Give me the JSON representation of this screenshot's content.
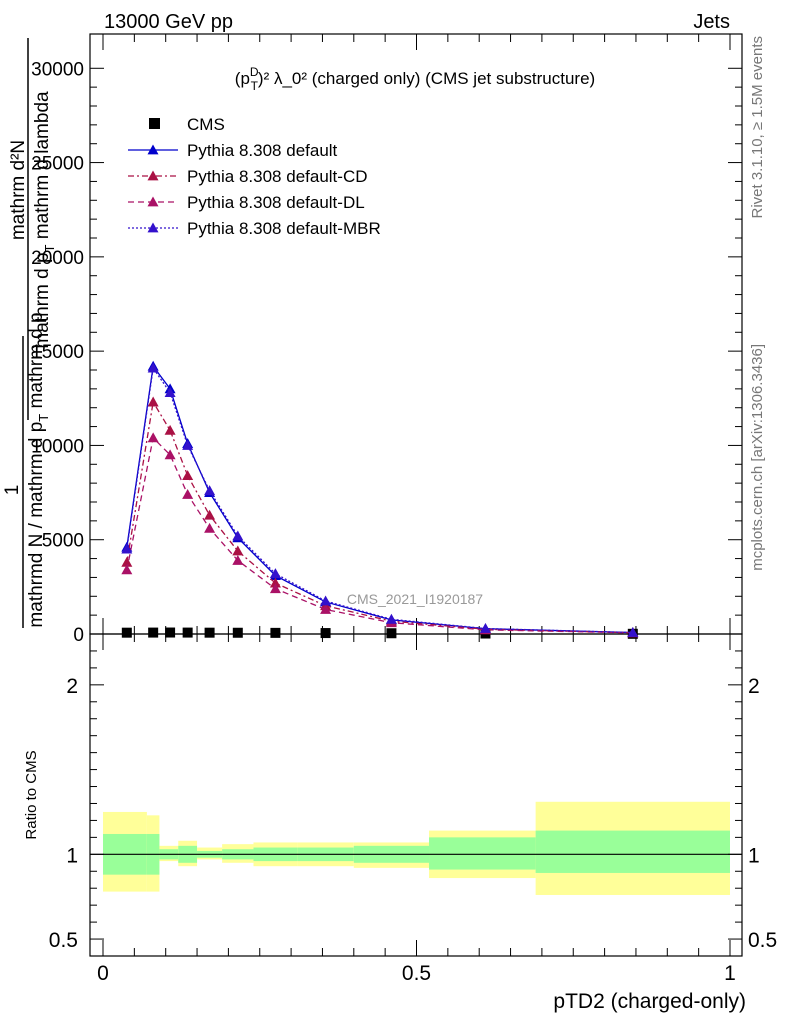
{
  "header": {
    "left": "13000 GeV pp",
    "right": "Jets"
  },
  "side_labels": {
    "rivet": "Rivet 3.1.10, ≥ 1.5M events",
    "mcplots": "mcplots.cern.ch [arXiv:1306.3436]"
  },
  "main_title": {
    "prefix": "(p",
    "sup_d": "D",
    "sub_t": "T",
    "rest": ")² λ_0² (charged only) (CMS jet substructure)"
  },
  "watermark": "CMS_2021_I1920187",
  "ylabel_lines": [
    "mathrm d²N",
    "mathrm d p_T mathrm d lambda",
    "1",
    "mathrm d N / mathrm d p_T mathrm d p_T"
  ],
  "ylabel_upper_a": "mathrm d²N",
  "ylabel_upper_b": "mathrm d p",
  "ylabel_upper_b_sub": "T",
  "ylabel_upper_b_rest": " mathrm d lambda",
  "ylabel_lower_a": "1",
  "ylabel_lower_b": "mathrmd N / mathrm d p",
  "ylabel_lower_b_sub": "T",
  "ylabel_lower_b_rest": " mathrm d p",
  "ratio_ylabel": "Ratio to CMS",
  "xlabel": "pTD2 (charged-only)",
  "colors": {
    "band_inner": "#99ff99",
    "band_outer": "#ffff99",
    "default": "#0000cc",
    "cd": "#aa1144",
    "dl": "#aa1166",
    "mbr": "#3311cc"
  },
  "chart_data": {
    "type": "line",
    "main": {
      "ylim": [
        0,
        32000
      ],
      "yticks": [
        0,
        5000,
        10000,
        15000,
        20000,
        25000,
        30000
      ],
      "ytick_labels": [
        "0",
        "5000",
        "10000",
        "15000",
        "20000",
        "25000",
        "30000"
      ]
    },
    "ratio": {
      "ylim": [
        0.4,
        2.3
      ],
      "yticks": [
        0.5,
        1,
        2
      ],
      "ytick_labels": [
        "0.5",
        "1",
        "2"
      ]
    },
    "xlim": [
      0,
      1
    ],
    "xticks": [
      0,
      0.5,
      1
    ],
    "xtick_labels": [
      "0",
      "0.5",
      "1"
    ],
    "x": [
      0.038,
      0.08,
      0.107,
      0.135,
      0.17,
      0.215,
      0.275,
      0.355,
      0.46,
      0.61,
      0.845
    ],
    "bins": [
      [
        0.0,
        0.07
      ],
      [
        0.07,
        0.09
      ],
      [
        0.09,
        0.12
      ],
      [
        0.12,
        0.15
      ],
      [
        0.15,
        0.19
      ],
      [
        0.19,
        0.24
      ],
      [
        0.24,
        0.31
      ],
      [
        0.31,
        0.4
      ],
      [
        0.4,
        0.52
      ],
      [
        0.52,
        0.69
      ],
      [
        0.69,
        1.0
      ]
    ],
    "series": [
      {
        "name": "CMS",
        "marker": "square",
        "style": "none",
        "values": [
          70,
          75,
          78,
          75,
          70,
          66,
          60,
          50,
          40,
          25,
          10
        ]
      },
      {
        "name": "Pythia 8.308 default",
        "marker": "triangle",
        "style": "solid",
        "values": [
          4600,
          14200,
          13000,
          10100,
          7500,
          5100,
          3100,
          1700,
          750,
          280,
          75
        ]
      },
      {
        "name": "Pythia 8.308 default-CD",
        "marker": "triangle",
        "style": "dashdot",
        "values": [
          3800,
          12300,
          10800,
          8400,
          6300,
          4400,
          2700,
          1500,
          680,
          250,
          70
        ]
      },
      {
        "name": "Pythia 8.308 default-DL",
        "marker": "triangle",
        "style": "dashed",
        "values": [
          3400,
          10400,
          9500,
          7400,
          5600,
          3900,
          2400,
          1300,
          600,
          220,
          60
        ]
      },
      {
        "name": "Pythia 8.308 default-MBR",
        "marker": "triangle",
        "style": "dotted",
        "values": [
          4500,
          14100,
          12800,
          10000,
          7600,
          5200,
          3200,
          1750,
          780,
          290,
          78
        ]
      }
    ],
    "ratio_bands": {
      "inner": [
        [
          0.88,
          1.12
        ],
        [
          0.88,
          1.12
        ],
        [
          0.97,
          1.03
        ],
        [
          0.95,
          1.05
        ],
        [
          0.98,
          1.02
        ],
        [
          0.97,
          1.03
        ],
        [
          0.96,
          1.04
        ],
        [
          0.96,
          1.04
        ],
        [
          0.95,
          1.05
        ],
        [
          0.91,
          1.1
        ],
        [
          0.89,
          1.14
        ]
      ],
      "outer": [
        [
          0.78,
          1.25
        ],
        [
          0.78,
          1.23
        ],
        [
          0.96,
          1.05
        ],
        [
          0.93,
          1.08
        ],
        [
          0.97,
          1.04
        ],
        [
          0.95,
          1.06
        ],
        [
          0.93,
          1.07
        ],
        [
          0.93,
          1.07
        ],
        [
          0.92,
          1.07
        ],
        [
          0.86,
          1.14
        ],
        [
          0.76,
          1.31
        ]
      ]
    }
  }
}
